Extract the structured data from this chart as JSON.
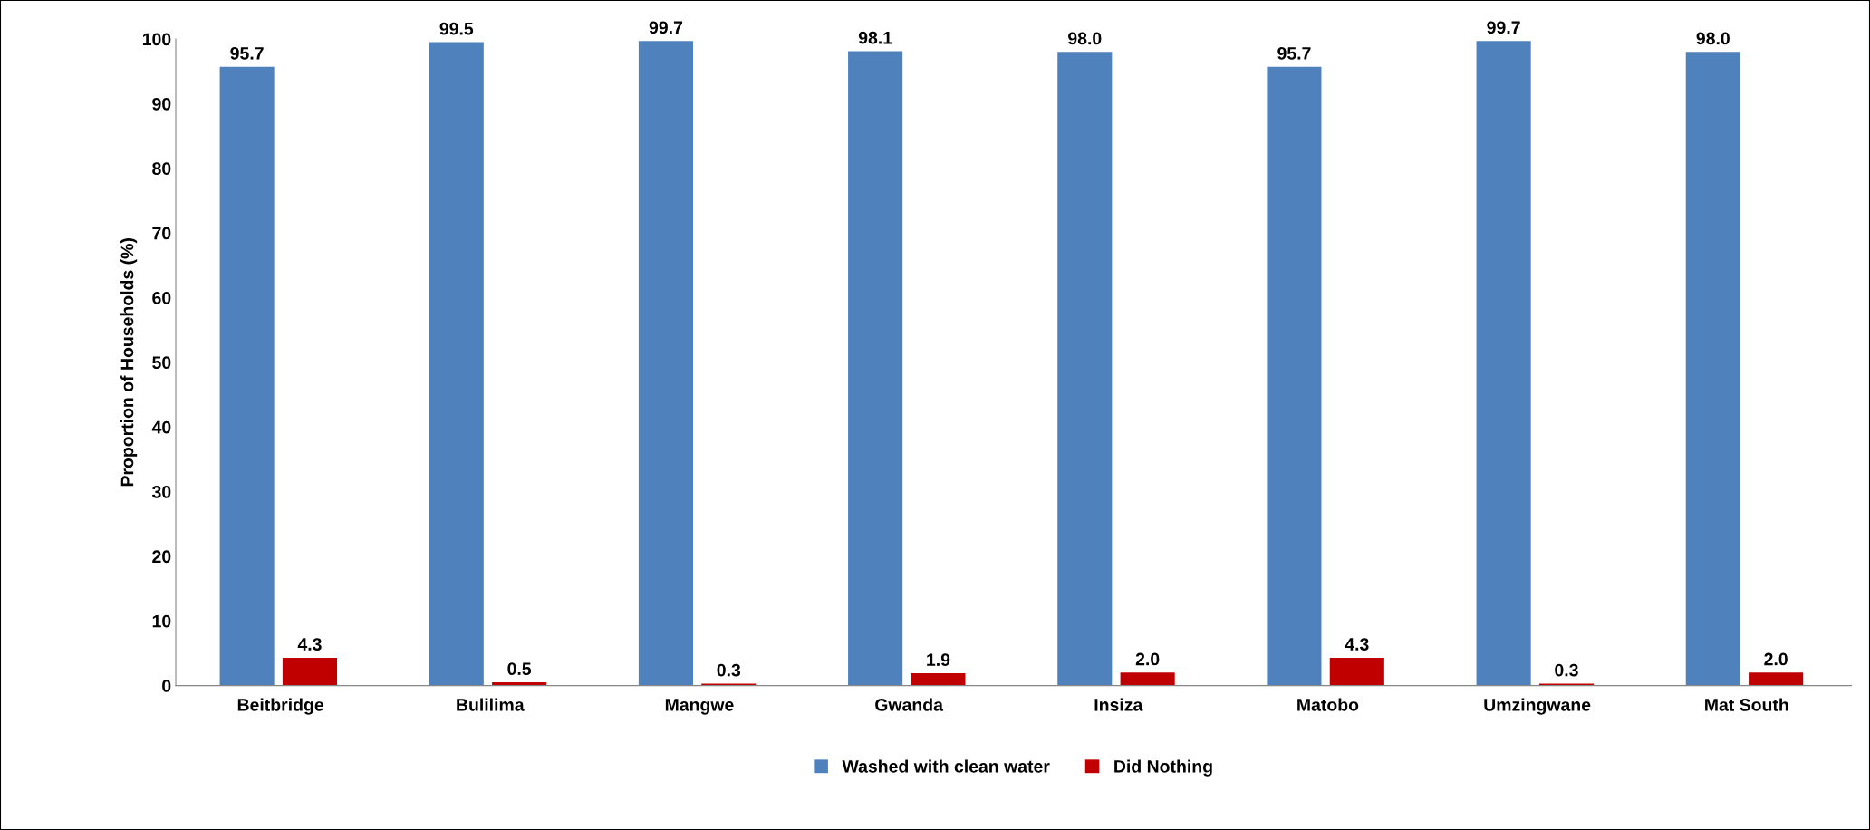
{
  "chart_data": {
    "type": "bar",
    "ylabel": "Proportion of Households (%)",
    "categories": [
      "Beitbridge",
      "Bulilima",
      "Mangwe",
      "Gwanda",
      "Insiza",
      "Matobo",
      "Umzingwane",
      "Mat South"
    ],
    "series": [
      {
        "name": "Washed with clean water",
        "color": "#4f81bd",
        "values": [
          95.7,
          99.5,
          99.7,
          98.1,
          98.0,
          95.7,
          99.7,
          98.0
        ],
        "value_labels": [
          "95.7",
          "99.5",
          "99.7",
          "98.1",
          "98.0",
          "95.7",
          "99.7",
          "98.0"
        ]
      },
      {
        "name": "Did Nothing",
        "color": "#c00000",
        "values": [
          4.3,
          0.5,
          0.3,
          1.9,
          2.0,
          4.3,
          0.3,
          2.0
        ],
        "value_labels": [
          "4.3",
          "0.5",
          "0.3",
          "1.9",
          "2.0",
          "4.3",
          "0.3",
          "2.0"
        ]
      }
    ],
    "ylim": [
      0,
      100
    ],
    "yticks": [
      0,
      10,
      20,
      30,
      40,
      50,
      60,
      70,
      80,
      90,
      100
    ],
    "grid": false,
    "legend": "bottom"
  }
}
